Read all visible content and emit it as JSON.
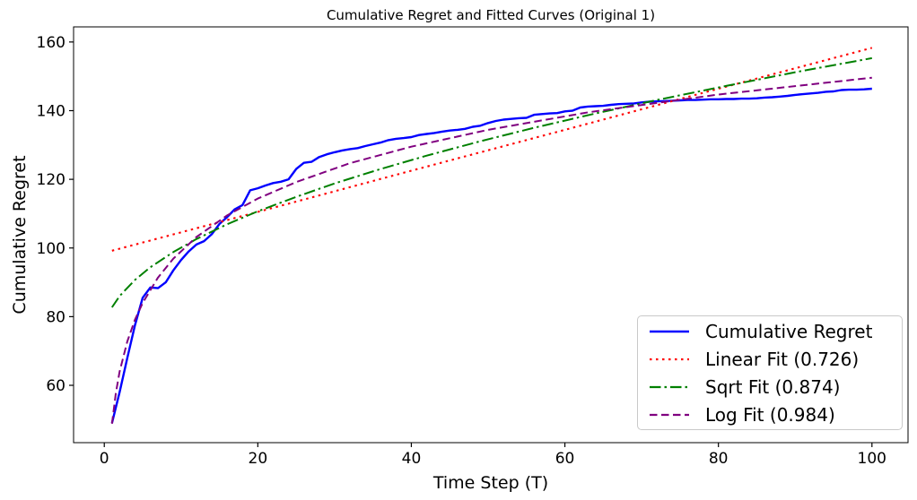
{
  "chart_data": {
    "type": "line",
    "title": "Cumulative Regret and Fitted Curves (Original 1)",
    "xlabel": "Time Step (T)",
    "ylabel": "Cumulative Regret",
    "xlim": [
      -4,
      104.7
    ],
    "ylim": [
      43.3,
      164.4
    ],
    "xticks": [
      0,
      20,
      40,
      60,
      80,
      100
    ],
    "yticks": [
      60,
      80,
      100,
      120,
      140,
      160
    ],
    "grid": false,
    "legend_position": "lower right",
    "series": [
      {
        "name": "cumulative-regret",
        "label": "Cumulative Regret",
        "color": "#0000ff",
        "style": "solid",
        "width": 2.4,
        "x": [
          1,
          2,
          3,
          4,
          5,
          6,
          7,
          8,
          9,
          10,
          11,
          12,
          13,
          14,
          15,
          16,
          17,
          18,
          19,
          20,
          21,
          22,
          23,
          24,
          25,
          26,
          27,
          28,
          29,
          30,
          31,
          32,
          33,
          34,
          35,
          36,
          37,
          38,
          39,
          40,
          41,
          42,
          43,
          44,
          45,
          46,
          47,
          48,
          49,
          50,
          51,
          52,
          53,
          54,
          55,
          56,
          57,
          58,
          59,
          60,
          61,
          62,
          63,
          64,
          65,
          66,
          67,
          68,
          69,
          70,
          71,
          72,
          73,
          74,
          75,
          76,
          77,
          78,
          79,
          80,
          81,
          82,
          83,
          84,
          85,
          86,
          87,
          88,
          89,
          90,
          91,
          92,
          93,
          94,
          95,
          96,
          97,
          98,
          99,
          100
        ],
        "y": [
          49,
          58,
          68,
          77.5,
          85.5,
          88.5,
          88.3,
          90,
          93.5,
          96.5,
          99,
          101,
          102,
          104,
          107,
          109,
          111.3,
          112.5,
          116.8,
          117.4,
          118.2,
          118.9,
          119.3,
          120,
          123,
          124.8,
          125.1,
          126.5,
          127.3,
          127.9,
          128.4,
          128.8,
          129.1,
          129.7,
          130.2,
          130.7,
          131.4,
          131.8,
          132,
          132.3,
          132.9,
          133.2,
          133.5,
          133.9,
          134.2,
          134.4,
          134.7,
          135.3,
          135.6,
          136.4,
          137,
          137.4,
          137.6,
          137.8,
          137.9,
          138.8,
          139,
          139.2,
          139.3,
          139.8,
          140,
          140.9,
          141.2,
          141.3,
          141.4,
          141.7,
          141.9,
          142,
          142.1,
          142.4,
          142.6,
          142.7,
          142.8,
          142.9,
          143,
          143.1,
          143.1,
          143.2,
          143.3,
          143.3,
          143.4,
          143.4,
          143.5,
          143.5,
          143.6,
          143.8,
          143.9,
          144.1,
          144.3,
          144.6,
          144.8,
          145,
          145.2,
          145.5,
          145.6,
          146,
          146.1,
          146.1,
          146.2,
          146.4
        ]
      },
      {
        "name": "linear-fit",
        "label": "Linear Fit (0.726)",
        "r_squared": 0.726,
        "color": "#ff0000",
        "style": "dotted",
        "width": 2.1,
        "fit": {
          "form": "y = a + b*x",
          "a": 98.6,
          "b": 0.597
        },
        "x": [
          1,
          20,
          40,
          60,
          80,
          100
        ],
        "y": [
          99.2,
          110.5,
          122.5,
          134.4,
          146.4,
          158.3
        ]
      },
      {
        "name": "sqrt-fit",
        "label": "Sqrt Fit (0.874)",
        "r_squared": 0.874,
        "color": "#008000",
        "style": "dashdot",
        "width": 2,
        "fit": {
          "form": "y = a + b*sqrt(x)",
          "a": 74.6,
          "b": 8.07
        },
        "x": [
          1,
          2,
          4,
          6,
          9,
          12,
          16,
          20,
          25,
          30,
          36,
          42,
          49,
          56,
          64,
          72,
          81,
          90,
          100
        ],
        "y": [
          82.7,
          86.0,
          90.7,
          94.4,
          98.8,
          102.6,
          106.9,
          110.7,
          114.9,
          118.8,
          123.0,
          126.9,
          131.1,
          135.0,
          139.2,
          143.1,
          147.2,
          151.2,
          155.3
        ]
      },
      {
        "name": "log-fit",
        "label": "Log Fit (0.984)",
        "r_squared": 0.984,
        "color": "#800080",
        "style": "dashed",
        "width": 2,
        "fit": {
          "form": "y = a + b*ln(x)",
          "a": 48.8,
          "b": 21.89
        },
        "x": [
          1,
          1.5,
          2,
          3,
          4,
          5,
          7,
          9,
          12,
          16,
          20,
          25,
          32,
          40,
          50,
          63,
          80,
          100
        ],
        "y": [
          48.8,
          57.7,
          64.0,
          72.8,
          79.1,
          84.0,
          91.4,
          96.9,
          103.2,
          109.5,
          114.4,
          119.2,
          124.7,
          129.5,
          134.4,
          139.5,
          144.7,
          149.6
        ]
      }
    ]
  }
}
